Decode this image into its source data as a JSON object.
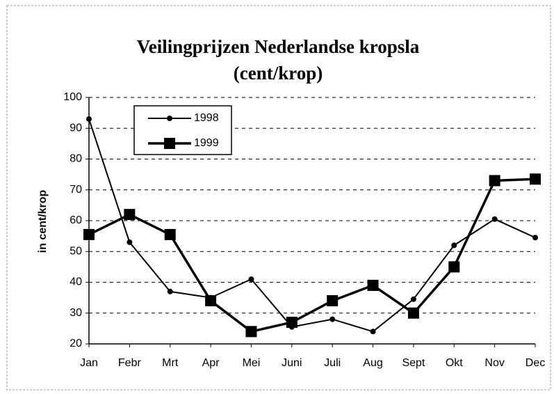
{
  "chart_data": {
    "type": "line",
    "title": "Veilingprijzen Nederlandse kropsla",
    "subtitle": "(cent/krop)",
    "y_label": "in cent/krop",
    "categories": [
      "Jan",
      "Febr",
      "Mrt",
      "Apr",
      "Mei",
      "Juni",
      "Juli",
      "Aug",
      "Sept",
      "Okt",
      "Nov",
      "Dec"
    ],
    "series": [
      {
        "name": "1998",
        "color": "#000000",
        "marker": "circle",
        "values": [
          93,
          53,
          37,
          35,
          41,
          25.5,
          28,
          24,
          34.5,
          52,
          60.5,
          54.5
        ]
      },
      {
        "name": "1999",
        "color": "#000000",
        "marker": "square",
        "values": [
          55.5,
          62,
          55.5,
          34,
          24,
          27,
          34,
          39,
          30,
          45,
          73,
          73.5
        ]
      }
    ],
    "ylim": [
      20,
      100
    ],
    "yticks": [
      20,
      30,
      40,
      50,
      60,
      70,
      80,
      90,
      100
    ],
    "grid": true,
    "legend": "top-left"
  }
}
